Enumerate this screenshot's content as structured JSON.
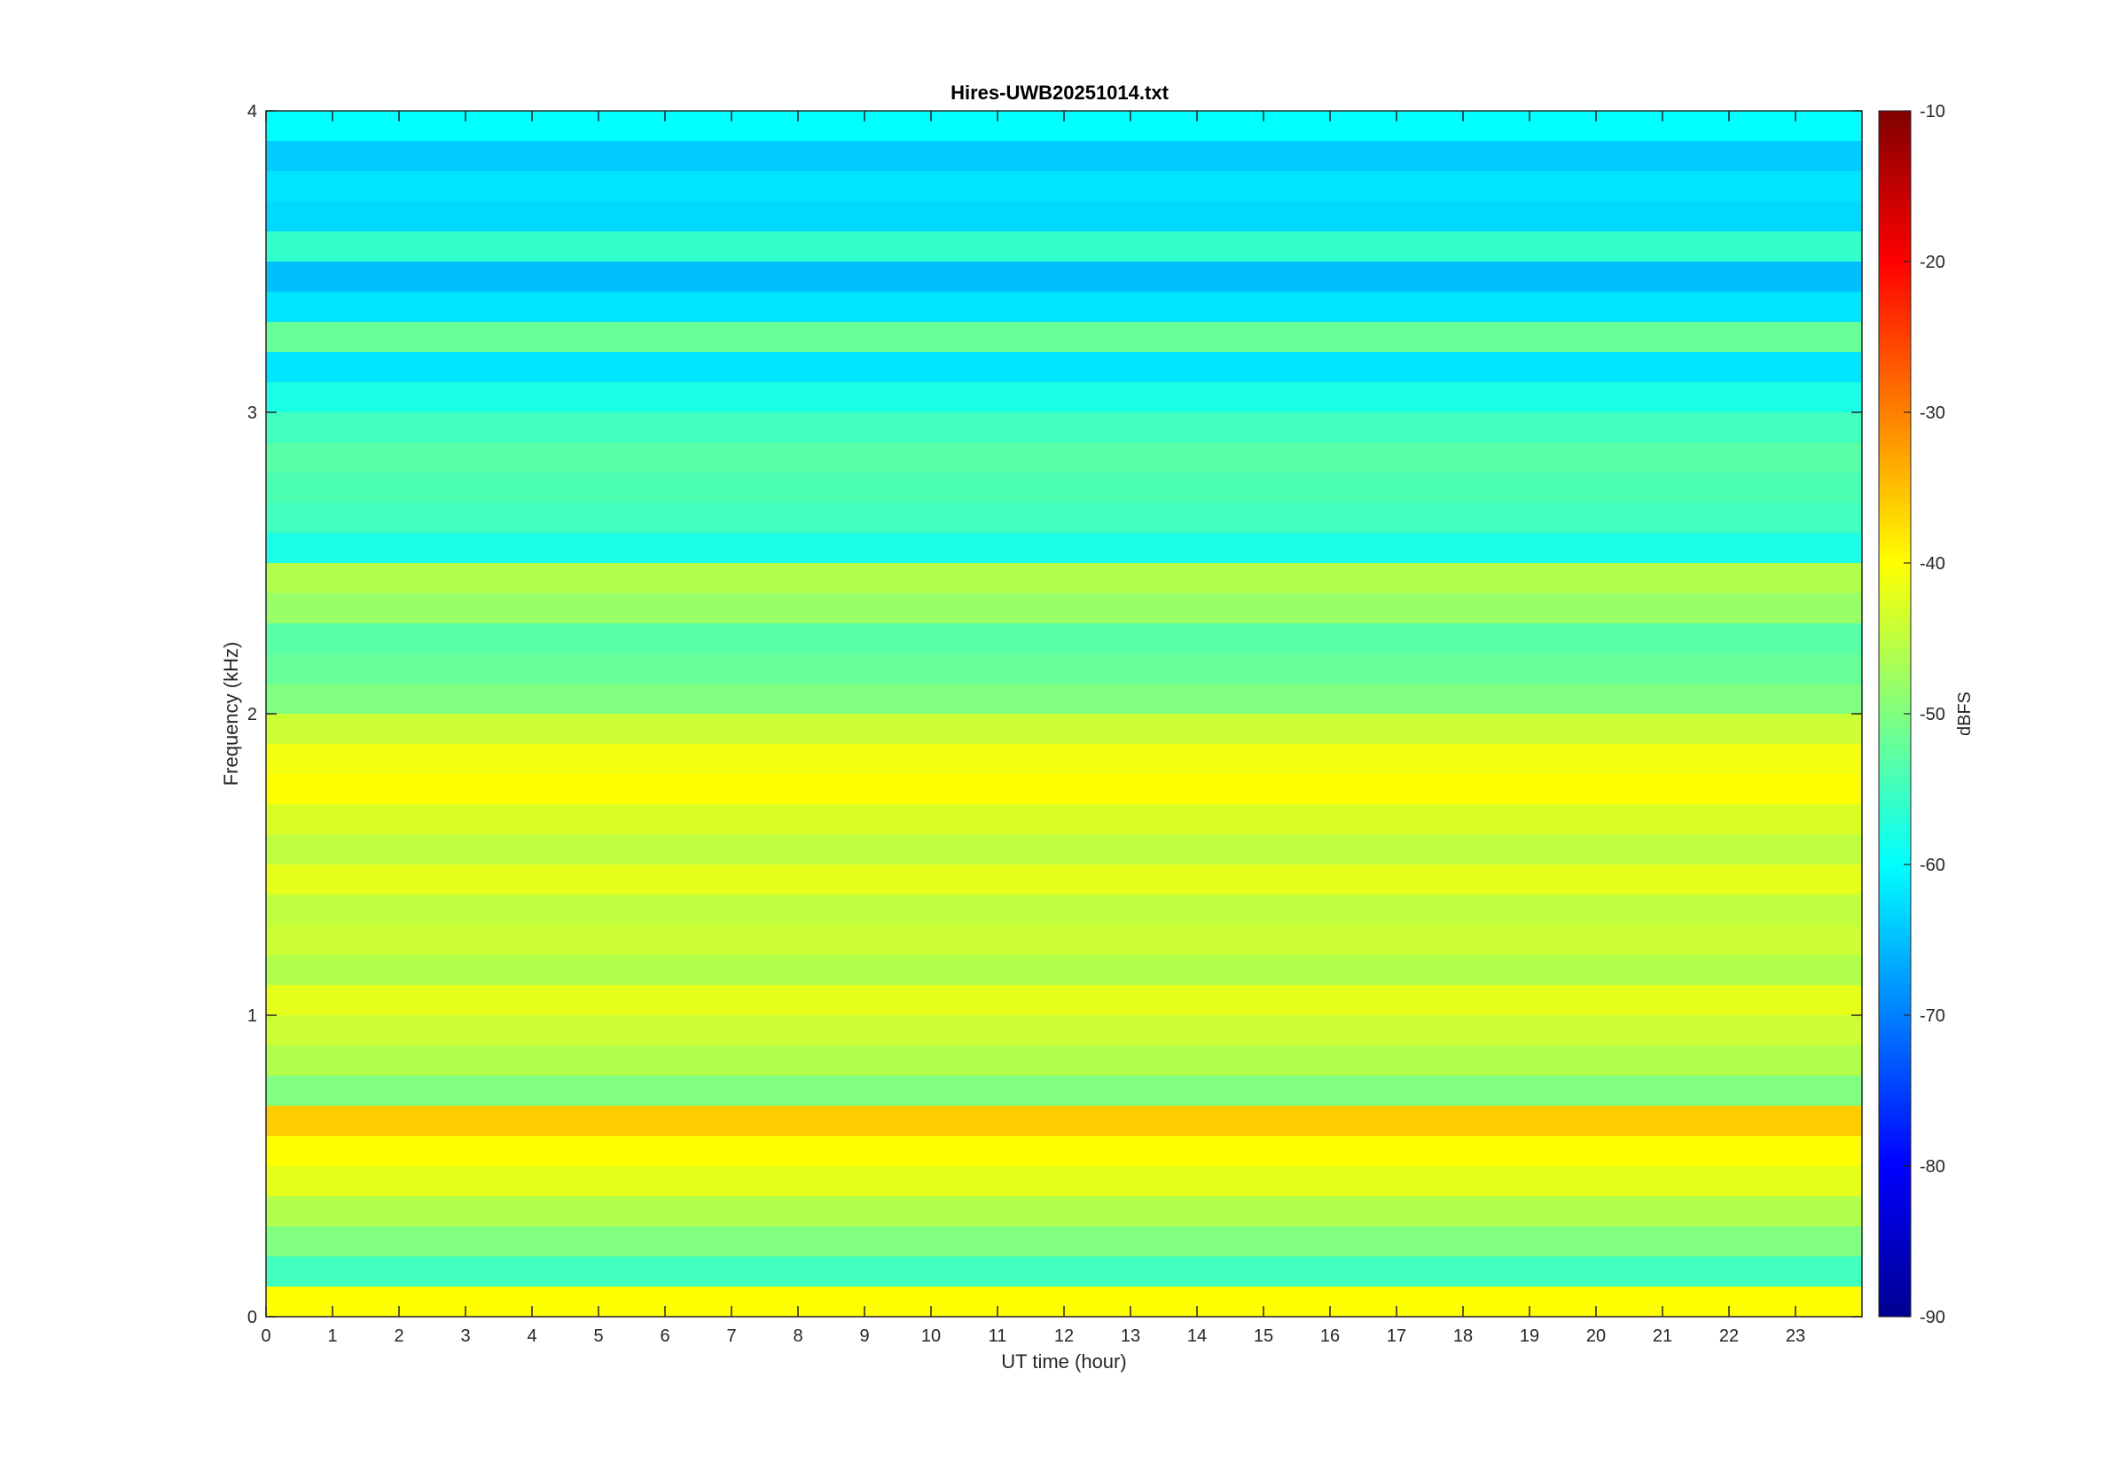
{
  "chart_data": {
    "type": "heatmap",
    "title": "Hires-UWB20251014.txt",
    "xlabel": "UT time (hour)",
    "ylabel": "Frequency (kHz)",
    "xlim": [
      0,
      24
    ],
    "ylim": [
      0,
      4
    ],
    "x_ticks": [
      "0",
      "1",
      "2",
      "3",
      "4",
      "5",
      "6",
      "7",
      "8",
      "9",
      "10",
      "11",
      "12",
      "13",
      "14",
      "15",
      "16",
      "17",
      "18",
      "19",
      "20",
      "21",
      "22",
      "23"
    ],
    "y_ticks": [
      "0",
      "1",
      "2",
      "3",
      "4"
    ],
    "colorbar": {
      "label": "dBFS",
      "range": [
        -90,
        -10
      ],
      "ticks": [
        "-10",
        "-20",
        "-30",
        "-40",
        "-50",
        "-60",
        "-70",
        "-80",
        "-90"
      ],
      "colormap": "jet"
    },
    "bands": [
      {
        "f_khz": 0.05,
        "level_dbfs": -40
      },
      {
        "f_khz": 0.15,
        "level_dbfs": -55
      },
      {
        "f_khz": 0.25,
        "level_dbfs": -50
      },
      {
        "f_khz": 0.35,
        "level_dbfs": -46
      },
      {
        "f_khz": 0.45,
        "level_dbfs": -42
      },
      {
        "f_khz": 0.55,
        "level_dbfs": -40
      },
      {
        "f_khz": 0.65,
        "level_dbfs": -36
      },
      {
        "f_khz": 0.75,
        "level_dbfs": -50
      },
      {
        "f_khz": 0.85,
        "level_dbfs": -46
      },
      {
        "f_khz": 0.95,
        "level_dbfs": -44
      },
      {
        "f_khz": 1.05,
        "level_dbfs": -42
      },
      {
        "f_khz": 1.15,
        "level_dbfs": -46
      },
      {
        "f_khz": 1.25,
        "level_dbfs": -44
      },
      {
        "f_khz": 1.35,
        "level_dbfs": -45
      },
      {
        "f_khz": 1.45,
        "level_dbfs": -42
      },
      {
        "f_khz": 1.55,
        "level_dbfs": -45
      },
      {
        "f_khz": 1.65,
        "level_dbfs": -43
      },
      {
        "f_khz": 1.75,
        "level_dbfs": -40
      },
      {
        "f_khz": 1.85,
        "level_dbfs": -41
      },
      {
        "f_khz": 1.95,
        "level_dbfs": -44
      },
      {
        "f_khz": 2.05,
        "level_dbfs": -50
      },
      {
        "f_khz": 2.15,
        "level_dbfs": -52
      },
      {
        "f_khz": 2.25,
        "level_dbfs": -53
      },
      {
        "f_khz": 2.35,
        "level_dbfs": -48
      },
      {
        "f_khz": 2.45,
        "level_dbfs": -46
      },
      {
        "f_khz": 2.55,
        "level_dbfs": -58
      },
      {
        "f_khz": 2.65,
        "level_dbfs": -55
      },
      {
        "f_khz": 2.75,
        "level_dbfs": -54
      },
      {
        "f_khz": 2.85,
        "level_dbfs": -53
      },
      {
        "f_khz": 2.95,
        "level_dbfs": -55
      },
      {
        "f_khz": 3.05,
        "level_dbfs": -58
      },
      {
        "f_khz": 3.15,
        "level_dbfs": -62
      },
      {
        "f_khz": 3.25,
        "level_dbfs": -52
      },
      {
        "f_khz": 3.35,
        "level_dbfs": -62
      },
      {
        "f_khz": 3.45,
        "level_dbfs": -65
      },
      {
        "f_khz": 3.55,
        "level_dbfs": -56
      },
      {
        "f_khz": 3.65,
        "level_dbfs": -63
      },
      {
        "f_khz": 3.75,
        "level_dbfs": -62
      },
      {
        "f_khz": 3.85,
        "level_dbfs": -64
      },
      {
        "f_khz": 3.95,
        "level_dbfs": -60
      }
    ]
  }
}
